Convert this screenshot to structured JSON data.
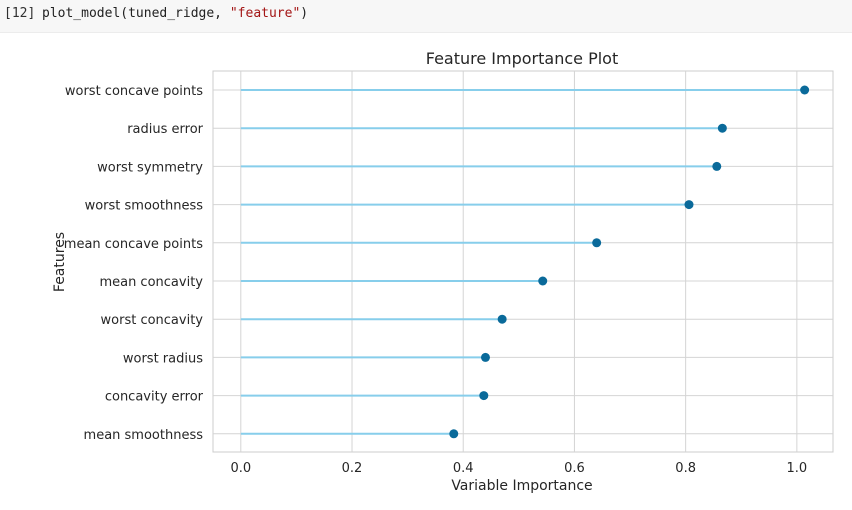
{
  "cell": {
    "prompt": "[12]",
    "code_prefix": "plot_model(tuned_ridge, ",
    "code_string": "\"feature\"",
    "code_suffix": ")"
  },
  "chart_data": {
    "type": "lollipop",
    "title": "Feature Importance Plot",
    "xlabel": "Variable Importance",
    "ylabel": "Features",
    "xlim": [
      -0.05,
      1.065
    ],
    "xticks": [
      0.0,
      0.2,
      0.4,
      0.6,
      0.8,
      1.0
    ],
    "xtick_labels": [
      "0.0",
      "0.2",
      "0.4",
      "0.6",
      "0.8",
      "1.0"
    ],
    "grid": true,
    "line_color": "#87ceeb",
    "marker_color": "#0a6a9a",
    "categories": [
      "worst concave points",
      "radius error",
      "worst symmetry",
      "worst smoothness",
      "mean concave points",
      "mean concavity",
      "worst concavity",
      "worst radius",
      "concavity error",
      "mean smoothness"
    ],
    "values": [
      1.014,
      0.866,
      0.856,
      0.806,
      0.64,
      0.543,
      0.47,
      0.44,
      0.437,
      0.383
    ]
  }
}
